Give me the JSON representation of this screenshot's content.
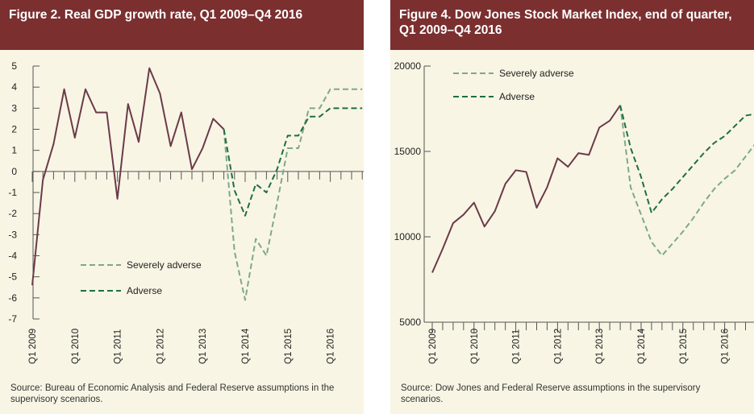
{
  "colors": {
    "header_bg": "#7b2f2f",
    "panel_bg": "#f8f5e4",
    "history": "#6b3a4a",
    "severely_adverse": "#7fa88a",
    "adverse": "#1f6e45",
    "axis": "#555555"
  },
  "chart_data": [
    {
      "type": "line",
      "title": "Figure 2. Real GDP growth rate, Q1 2009–Q4 2016",
      "ylim": [
        -7,
        5
      ],
      "yticks": [
        "5",
        "4",
        "3",
        "2",
        "1",
        "0",
        "-1",
        "-2",
        "-3",
        "-4",
        "-5",
        "-6",
        "-7"
      ],
      "x_tick_labels": [
        "Q1 2009",
        "Q1 2010",
        "Q1 2011",
        "Q1 2012",
        "Q1 2013",
        "Q1 2014",
        "Q1 2015",
        "Q1 2016"
      ],
      "grid": false,
      "legend_position": "lower-center",
      "series": [
        {
          "key": "history",
          "values": [
            -5.4,
            -0.4,
            1.3,
            3.9,
            1.6,
            3.9,
            2.8,
            2.8,
            -1.3,
            3.2,
            1.4,
            4.9,
            3.7,
            1.2,
            2.8,
            0.1,
            1.1,
            2.5,
            2.0
          ]
        },
        {
          "key": "severely_adverse",
          "name": "Severely adverse",
          "start_index": 18,
          "values": [
            2.0,
            -3.8,
            -6.1,
            -3.2,
            -4.0,
            -1.5,
            1.1,
            1.1,
            3.0,
            3.0,
            3.9,
            3.9,
            3.9,
            3.9
          ]
        },
        {
          "key": "adverse",
          "name": "Adverse",
          "start_index": 18,
          "values": [
            2.0,
            -0.9,
            -2.1,
            -0.6,
            -1.0,
            0.1,
            1.7,
            1.7,
            2.6,
            2.6,
            3.0,
            3.0,
            3.0,
            3.0
          ]
        }
      ],
      "source": "Source: Bureau of Economic Analysis and Federal Reserve assumptions in the supervisory scenarios."
    },
    {
      "type": "line",
      "title": "Figure 4. Dow Jones Stock Market Index, end of quarter, Q1 2009–Q4 2016",
      "ylim": [
        5000,
        20000
      ],
      "yticks": [
        "20000",
        "15000",
        "10000",
        "5000"
      ],
      "x_tick_labels": [
        "Q1 2009",
        "Q1 2010",
        "Q1 2011",
        "Q1 2012",
        "Q1 2013",
        "Q1 2014",
        "Q1 2015",
        "Q1 2016"
      ],
      "grid": false,
      "legend_position": "top-left",
      "series": [
        {
          "key": "history",
          "values": [
            7900,
            9300,
            10800,
            11300,
            12000,
            10600,
            11500,
            13100,
            13900,
            13800,
            11700,
            12900,
            14600,
            14100,
            14900,
            14800,
            16400,
            16800,
            17700
          ]
        },
        {
          "key": "severely_adverse",
          "name": "Severely adverse",
          "start_index": 18,
          "values": [
            17700,
            12900,
            11300,
            9700,
            8900,
            9600,
            10300,
            11100,
            12000,
            12800,
            13400,
            13900,
            14700,
            15500
          ]
        },
        {
          "key": "adverse",
          "name": "Adverse",
          "start_index": 18,
          "values": [
            17700,
            15200,
            13500,
            11400,
            12200,
            12800,
            13500,
            14200,
            14900,
            15500,
            15900,
            16500,
            17100,
            17200
          ]
        }
      ],
      "source": "Source: Dow Jones and Federal Reserve assumptions in the supervisory scenarios."
    }
  ]
}
